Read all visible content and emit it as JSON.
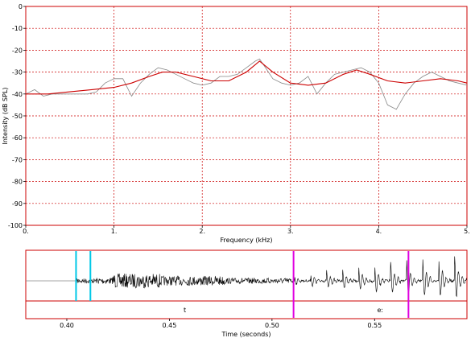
{
  "chart_data": [
    {
      "type": "line",
      "xlabel": "Frequency (kHz)",
      "ylabel": "Intensity (dB SPL)",
      "xlim": [
        0,
        5
      ],
      "ylim": [
        -100,
        0
      ],
      "grid": true,
      "x_ticks": [
        "0.",
        "1.",
        "2.",
        "3.",
        "4.",
        "5."
      ],
      "y_ticks": [
        "0",
        "-10",
        "-20",
        "-30",
        "-40",
        "-50",
        "-60",
        "-70",
        "-80",
        "-90",
        "-100"
      ],
      "colors": {
        "spectrum": "#888888",
        "envelope": "#cc0000",
        "grid": "#cc0000",
        "frame": "#cc0000"
      },
      "series": [
        {
          "key": "spectrum",
          "x": [
            0,
            0.1,
            0.2,
            0.3,
            0.4,
            0.5,
            0.6,
            0.7,
            0.8,
            0.9,
            1.0,
            1.1,
            1.2,
            1.3,
            1.4,
            1.5,
            1.6,
            1.7,
            1.8,
            1.9,
            2.0,
            2.1,
            2.2,
            2.3,
            2.4,
            2.5,
            2.6,
            2.65,
            2.7,
            2.8,
            2.9,
            3.0,
            3.1,
            3.2,
            3.3,
            3.4,
            3.5,
            3.6,
            3.7,
            3.8,
            3.9,
            4.0,
            4.1,
            4.2,
            4.3,
            4.4,
            4.5,
            4.6,
            4.7,
            4.8,
            4.9,
            5.0
          ],
          "values": [
            -40,
            -38,
            -41,
            -40,
            -40,
            -40,
            -40,
            -40,
            -39,
            -35,
            -33,
            -33,
            -41,
            -35,
            -31,
            -28,
            -29,
            -31,
            -33,
            -35,
            -36,
            -35,
            -32,
            -32,
            -31,
            -28,
            -25,
            -24,
            -27,
            -33,
            -35,
            -36,
            -35,
            -32,
            -40,
            -35,
            -31,
            -30,
            -29,
            -28,
            -30,
            -35,
            -45,
            -47,
            -40,
            -35,
            -32,
            -30,
            -32,
            -34,
            -35,
            -36
          ]
        },
        {
          "key": "envelope",
          "x": [
            0,
            0.25,
            0.5,
            0.75,
            1.0,
            1.2,
            1.4,
            1.55,
            1.7,
            1.9,
            2.1,
            2.3,
            2.5,
            2.65,
            2.8,
            3.0,
            3.2,
            3.4,
            3.6,
            3.75,
            3.9,
            4.1,
            4.3,
            4.5,
            4.7,
            4.9,
            5.0
          ],
          "values": [
            -40,
            -40,
            -39,
            -38,
            -37,
            -35,
            -32,
            -30,
            -30,
            -32,
            -34,
            -34,
            -30,
            -25,
            -30,
            -35,
            -36,
            -35,
            -31,
            -29,
            -31,
            -34,
            -35,
            -34,
            -33,
            -34,
            -35
          ]
        }
      ]
    },
    {
      "type": "line",
      "xlabel": "Time (seconds)",
      "xlim": [
        0.38,
        0.595
      ],
      "x_tick_values": [
        0.4,
        0.45,
        0.5,
        0.55
      ],
      "x_ticks": [
        "0.40",
        "0.45",
        "0.50",
        "0.55"
      ],
      "markers": [
        {
          "t": 0.4045,
          "color": "#00c8e6"
        },
        {
          "t": 0.4115,
          "color": "#00c8e6"
        },
        {
          "t": 0.5105,
          "color": "#e000e0"
        },
        {
          "t": 0.5665,
          "color": "#e000e0"
        }
      ],
      "segments": [
        {
          "label": "t",
          "start": 0.4045,
          "end": 0.5105
        },
        {
          "label": "eː",
          "start": 0.5105,
          "end": 0.595
        }
      ],
      "waveform_onset": 0.405,
      "voicing_onset": 0.511,
      "pitch_period": 0.0078
    }
  ]
}
